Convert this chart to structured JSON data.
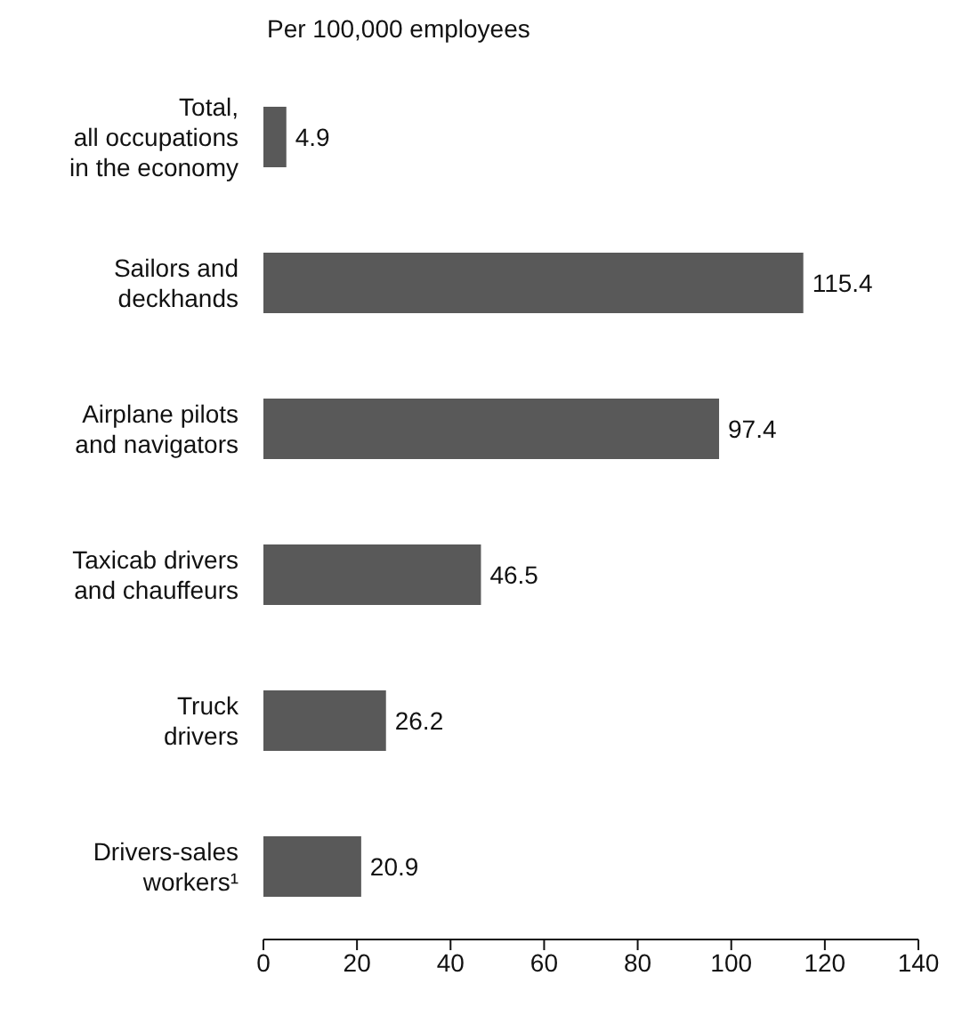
{
  "chart_data": {
    "type": "bar",
    "orientation": "horizontal",
    "title": "Per 100,000 employees",
    "categories": [
      "Total,\nall occupations\nin the economy",
      "Sailors and\ndeckhands",
      "Airplane pilots\nand navigators",
      "Taxicab drivers\nand chauffeurs",
      "Truck\ndrivers",
      "Drivers-sales\nworkers¹"
    ],
    "values": [
      4.9,
      115.4,
      97.4,
      46.5,
      26.2,
      20.9
    ],
    "color": "#595959",
    "xlim": [
      0,
      140
    ],
    "xticks": [
      0,
      20,
      40,
      60,
      80,
      100,
      120,
      140
    ],
    "data_labels": true,
    "grid": false,
    "legend": false
  }
}
